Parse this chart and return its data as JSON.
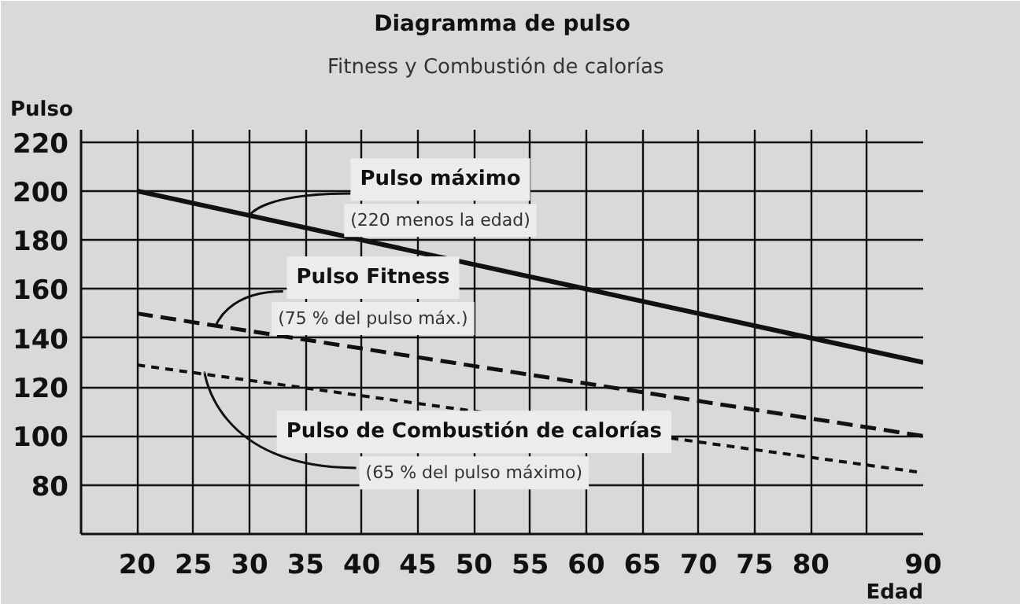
{
  "chart_data": {
    "type": "line",
    "title": "Diagramma de pulso",
    "subtitle": "Fitness  y  Combustión de calorías",
    "xlabel": "Edad",
    "ylabel": "Pulso",
    "x": [
      20,
      90
    ],
    "series": [
      {
        "name": "Pulso máximo",
        "color": "#111111",
        "values": [
          200,
          130
        ],
        "line_style": "solid"
      },
      {
        "name": "Pulso Fitness",
        "color": "#111111",
        "values": [
          150,
          100
        ],
        "line_style": "dashed"
      },
      {
        "name": "Pulso de Combustión de calorías",
        "color": "#111111",
        "values": [
          129,
          85
        ],
        "line_style": "dotted"
      }
    ],
    "annotations": [
      {
        "text": "(220 menos la edad)",
        "x": 30,
        "y": 190
      },
      {
        "text": "(75 % del pulso máx.)",
        "x": 27,
        "y": 145
      },
      {
        "text": "(65 % del pulso máximo)",
        "x": 26,
        "y": 126
      }
    ],
    "xlim": [
      15,
      90
    ],
    "ylim": [
      60,
      225
    ],
    "xticks": [
      20,
      25,
      30,
      35,
      40,
      45,
      50,
      55,
      60,
      65,
      70,
      75,
      80,
      {
        "value": 85,
        "label": null
      },
      90
    ],
    "yticks": [
      80,
      100,
      120,
      140,
      160,
      180,
      200,
      220
    ],
    "grid": true,
    "marker": "none"
  }
}
